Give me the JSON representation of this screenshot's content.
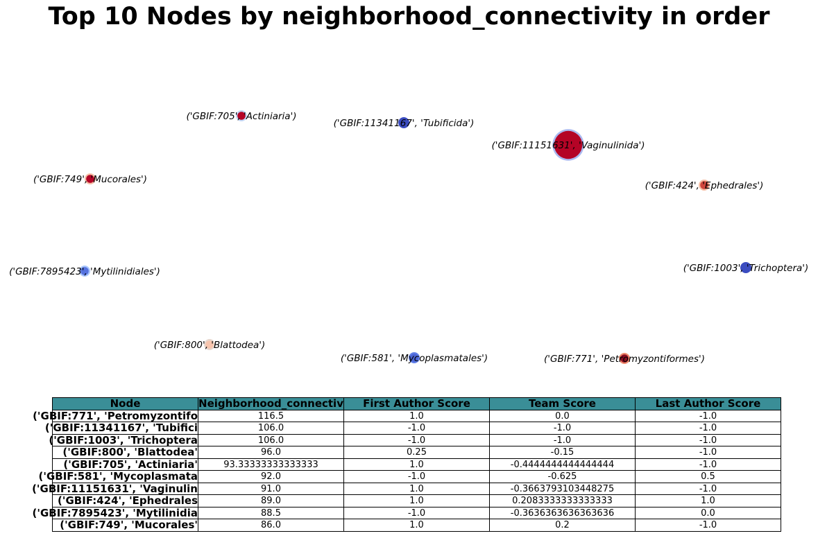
{
  "chart_data": {
    "type": "network",
    "title": "Top 10 Nodes by neighborhood_connectivity in order",
    "nodes": [
      {
        "label": "('GBIF:705', 'Actiniaria')",
        "color": "#b40426",
        "halo": "#c3d5f4",
        "size": 1.0
      },
      {
        "label": "('GBIF:11341167', 'Tubificida')",
        "color": "#3b4cc0",
        "halo": "#3b4cc0",
        "size": 1.0
      },
      {
        "label": "('GBIF:11151631', 'Vaginulinida')",
        "color": "#b40426",
        "halo": "#aab9f0",
        "size": 4.0
      },
      {
        "label": "('GBIF:749', 'Mucorales')",
        "color": "#b40426",
        "halo": "#f6bfa6",
        "size": 1.0
      },
      {
        "label": "('GBIF:424', 'Ephedrales')",
        "color": "#d0473d",
        "halo": "#f6bfa6",
        "size": 1.0
      },
      {
        "label": "('GBIF:7895423', 'Mytilinidiales')",
        "color": "#5572df",
        "halo": "#aac7fd",
        "size": 1.0
      },
      {
        "label": "('GBIF:1003', 'Trichoptera')",
        "color": "#3b4cc0",
        "halo": "#3b4cc0",
        "size": 1.0
      },
      {
        "label": "('GBIF:800', 'Blattodea')",
        "color": "#f7c4ad",
        "halo": "#e7d7ce",
        "size": 1.0
      },
      {
        "label": "('GBIF:581', 'Mycoplasmatales')",
        "color": "#4b64d5",
        "halo": "#5e7de7",
        "size": 1.0
      },
      {
        "label": "('GBIF:771', 'Petromyzontiformes')",
        "color": "#8b0d22",
        "halo": "#f08b6e",
        "size": 1.0
      }
    ],
    "table": {
      "columns": [
        "Node",
        "Neighborhood_connectiv",
        "First Author Score",
        "Team Score",
        "Last Author Score"
      ],
      "rows": [
        {
          "label": "('GBIF:771', 'Petromyzontifo",
          "values": [
            "116.5",
            "1.0",
            "0.0",
            "-1.0"
          ]
        },
        {
          "label": "('GBIF:11341167', 'Tubifici",
          "values": [
            "106.0",
            "-1.0",
            "-1.0",
            "-1.0"
          ]
        },
        {
          "label": "('GBIF:1003', 'Trichoptera",
          "values": [
            "106.0",
            "-1.0",
            "-1.0",
            "-1.0"
          ]
        },
        {
          "label": "('GBIF:800', 'Blattodea'",
          "values": [
            "96.0",
            "0.25",
            "-0.15",
            "-1.0"
          ]
        },
        {
          "label": "('GBIF:705', 'Actiniaria'",
          "values": [
            "93.33333333333333",
            "1.0",
            "-0.4444444444444444",
            "-1.0"
          ]
        },
        {
          "label": "('GBIF:581', 'Mycoplasmata",
          "values": [
            "92.0",
            "-1.0",
            "-0.625",
            "0.5"
          ]
        },
        {
          "label": "('GBIF:11151631', 'Vaginulin",
          "values": [
            "91.0",
            "1.0",
            "-0.3663793103448275",
            "-1.0"
          ]
        },
        {
          "label": "('GBIF:424', 'Ephedrales",
          "values": [
            "89.0",
            "1.0",
            "0.2083333333333333",
            "1.0"
          ]
        },
        {
          "label": "('GBIF:7895423', 'Mytilinidia",
          "values": [
            "88.5",
            "-1.0",
            "-0.3636363636363636",
            "0.0"
          ]
        },
        {
          "label": "('GBIF:749', 'Mucorales'",
          "values": [
            "86.0",
            "1.0",
            "0.2",
            "-1.0"
          ]
        }
      ]
    },
    "colors": {
      "table_header": "#3a8e97"
    }
  }
}
